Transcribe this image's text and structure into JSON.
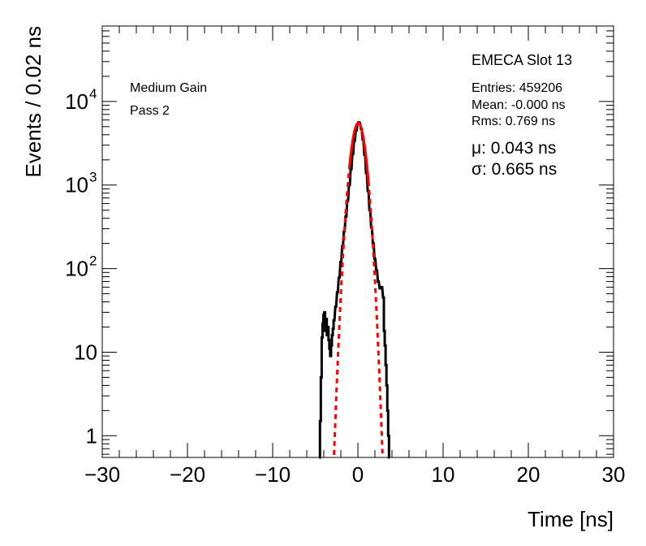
{
  "chart_data": {
    "type": "histogram",
    "xlabel": "Time [ns]",
    "ylabel": "Events / 0.02 ns",
    "xlim": [
      -30,
      30
    ],
    "ylim": [
      0.55,
      80000
    ],
    "yscale": "log",
    "x_ticks": [
      -30,
      -20,
      -10,
      0,
      10,
      20,
      30
    ],
    "x_tick_labels": [
      "−30",
      "−20",
      "−10",
      "0",
      "10",
      "20",
      "30"
    ],
    "y_ticks": [
      {
        "value": 1,
        "base": "1",
        "exp": ""
      },
      {
        "value": 10,
        "base": "10",
        "exp": ""
      },
      {
        "value": 100,
        "base": "10",
        "exp": "2"
      },
      {
        "value": 1000,
        "base": "10",
        "exp": "3"
      },
      {
        "value": 10000,
        "base": "10",
        "exp": "4"
      }
    ],
    "grid": false,
    "annotations": {
      "left_line1": "Medium Gain",
      "left_line2": "Pass 2",
      "title": "EMECA Slot 13",
      "entries": "Entries: 459206",
      "mean": "Mean: -0.000 ns",
      "rms": "Rms: 0.769 ns",
      "mu": "μ: 0.043 ns",
      "sigma": "σ: 0.665 ns"
    },
    "series": [
      {
        "style": "histogram",
        "color": "#000000",
        "points": [
          [
            -4.5,
            0.55
          ],
          [
            -4.4,
            1.5
          ],
          [
            -4.3,
            5
          ],
          [
            -4.2,
            15
          ],
          [
            -4.1,
            22
          ],
          [
            -4.0,
            28
          ],
          [
            -3.9,
            30
          ],
          [
            -3.8,
            18
          ],
          [
            -3.7,
            25
          ],
          [
            -3.6,
            16
          ],
          [
            -3.5,
            20
          ],
          [
            -3.4,
            14
          ],
          [
            -3.3,
            11
          ],
          [
            -3.2,
            9
          ],
          [
            -3.1,
            12
          ],
          [
            -3.0,
            16
          ],
          [
            -2.9,
            19
          ],
          [
            -2.8,
            24
          ],
          [
            -2.6,
            35
          ],
          [
            -2.4,
            52
          ],
          [
            -2.2,
            78
          ],
          [
            -2.0,
            120
          ],
          [
            -1.8,
            185
          ],
          [
            -1.6,
            280
          ],
          [
            -1.4,
            420
          ],
          [
            -1.2,
            650
          ],
          [
            -1.0,
            1000
          ],
          [
            -0.8,
            1550
          ],
          [
            -0.6,
            2350
          ],
          [
            -0.4,
            3400
          ],
          [
            -0.2,
            4500
          ],
          [
            0.0,
            5400
          ],
          [
            0.1,
            5600
          ],
          [
            0.2,
            5500
          ],
          [
            0.4,
            4700
          ],
          [
            0.6,
            3500
          ],
          [
            0.8,
            2300
          ],
          [
            1.0,
            1400
          ],
          [
            1.2,
            850
          ],
          [
            1.4,
            500
          ],
          [
            1.6,
            310
          ],
          [
            1.8,
            200
          ],
          [
            2.0,
            130
          ],
          [
            2.2,
            95
          ],
          [
            2.4,
            70
          ],
          [
            2.6,
            58
          ],
          [
            2.8,
            60
          ],
          [
            3.0,
            45
          ],
          [
            3.1,
            18
          ],
          [
            3.2,
            12
          ],
          [
            3.3,
            7
          ],
          [
            3.4,
            4
          ],
          [
            3.5,
            2
          ],
          [
            3.6,
            1
          ],
          [
            3.7,
            0.55
          ]
        ]
      },
      {
        "style": "fit",
        "color": "#ff0000",
        "solid_range": [
          -1.0,
          1.3
        ],
        "function": "gaussian",
        "amplitude": 5500,
        "mu": 0.043,
        "sigma": 0.665
      }
    ]
  }
}
